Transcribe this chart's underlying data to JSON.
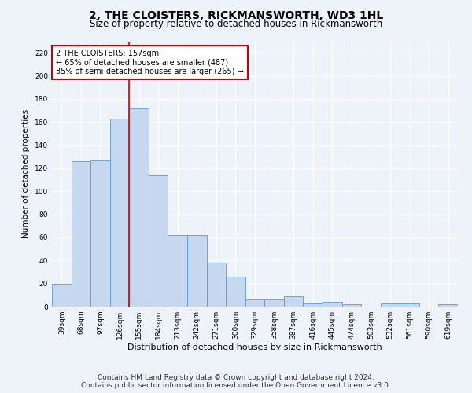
{
  "title": "2, THE CLOISTERS, RICKMANSWORTH, WD3 1HL",
  "subtitle": "Size of property relative to detached houses in Rickmansworth",
  "xlabel": "Distribution of detached houses by size in Rickmansworth",
  "ylabel": "Number of detached properties",
  "categories": [
    "39sqm",
    "68sqm",
    "97sqm",
    "126sqm",
    "155sqm",
    "184sqm",
    "213sqm",
    "242sqm",
    "271sqm",
    "300sqm",
    "329sqm",
    "358sqm",
    "387sqm",
    "416sqm",
    "445sqm",
    "474sqm",
    "503sqm",
    "532sqm",
    "561sqm",
    "590sqm",
    "619sqm"
  ],
  "values": [
    20,
    126,
    127,
    163,
    172,
    114,
    62,
    62,
    38,
    26,
    6,
    6,
    9,
    3,
    4,
    2,
    0,
    3,
    3,
    0,
    2
  ],
  "bar_color": "#c5d8f0",
  "bar_edge_color": "#5b9bd5",
  "vline_color": "#cc0000",
  "annotation_text": "2 THE CLOISTERS: 157sqm\n← 65% of detached houses are smaller (487)\n35% of semi-detached houses are larger (265) →",
  "annotation_box_color": "#ffffff",
  "annotation_box_edge_color": "#cc0000",
  "ylim": [
    0,
    230
  ],
  "yticks": [
    0,
    20,
    40,
    60,
    80,
    100,
    120,
    140,
    160,
    180,
    200,
    220
  ],
  "footer_line1": "Contains HM Land Registry data © Crown copyright and database right 2024.",
  "footer_line2": "Contains public sector information licensed under the Open Government Licence v3.0.",
  "bg_color": "#eef2f9",
  "grid_color": "#ffffff",
  "title_fontsize": 10,
  "subtitle_fontsize": 8.5,
  "xlabel_fontsize": 8,
  "ylabel_fontsize": 7.5,
  "tick_fontsize": 6.5,
  "annotation_fontsize": 7,
  "footer_fontsize": 6.5
}
